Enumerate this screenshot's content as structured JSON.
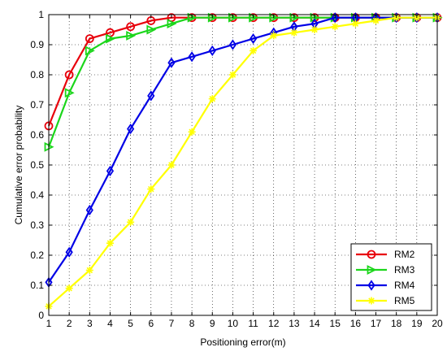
{
  "chart_data": {
    "type": "line",
    "title": "",
    "xlabel": "Positioning error(m)",
    "ylabel": "Cumulative error probability",
    "xlim": [
      1,
      20
    ],
    "ylim": [
      0,
      1
    ],
    "x": [
      1,
      2,
      3,
      4,
      5,
      6,
      7,
      8,
      9,
      10,
      11,
      12,
      13,
      14,
      15,
      16,
      17,
      18,
      19,
      20
    ],
    "xticks": [
      "1",
      "2",
      "3",
      "4",
      "5",
      "6",
      "7",
      "8",
      "9",
      "10",
      "11",
      "12",
      "13",
      "14",
      "15",
      "16",
      "17",
      "18",
      "19",
      "20"
    ],
    "yticks": [
      "0",
      "0.1",
      "0.2",
      "0.3",
      "0.4",
      "0.5",
      "0.6",
      "0.7",
      "0.8",
      "0.9",
      "1"
    ],
    "grid": true,
    "legend_position": "bottom-right",
    "series": [
      {
        "name": "RM2",
        "color": "#e8000b",
        "marker": "circle",
        "values": [
          0.63,
          0.8,
          0.92,
          0.94,
          0.96,
          0.98,
          0.99,
          0.99,
          0.99,
          0.99,
          0.99,
          0.99,
          0.99,
          0.99,
          0.99,
          0.99,
          0.99,
          0.99,
          0.99,
          0.99
        ]
      },
      {
        "name": "RM3",
        "color": "#1bd61b",
        "marker": "triangle-right",
        "values": [
          0.56,
          0.74,
          0.88,
          0.92,
          0.93,
          0.95,
          0.97,
          0.99,
          0.99,
          0.99,
          0.99,
          0.99,
          0.99,
          0.99,
          0.99,
          0.99,
          0.99,
          0.99,
          0.99,
          0.99
        ]
      },
      {
        "name": "RM4",
        "color": "#0000e6",
        "marker": "diamond",
        "values": [
          0.11,
          0.21,
          0.35,
          0.48,
          0.62,
          0.73,
          0.84,
          0.86,
          0.88,
          0.9,
          0.92,
          0.94,
          0.96,
          0.97,
          0.99,
          0.99,
          0.99,
          0.99,
          0.99,
          0.99
        ]
      },
      {
        "name": "RM5",
        "color": "#ffff00",
        "marker": "star",
        "values": [
          0.03,
          0.09,
          0.15,
          0.24,
          0.31,
          0.42,
          0.5,
          0.61,
          0.72,
          0.8,
          0.88,
          0.93,
          0.94,
          0.95,
          0.96,
          0.97,
          0.98,
          0.99,
          0.99,
          0.99
        ]
      }
    ]
  }
}
